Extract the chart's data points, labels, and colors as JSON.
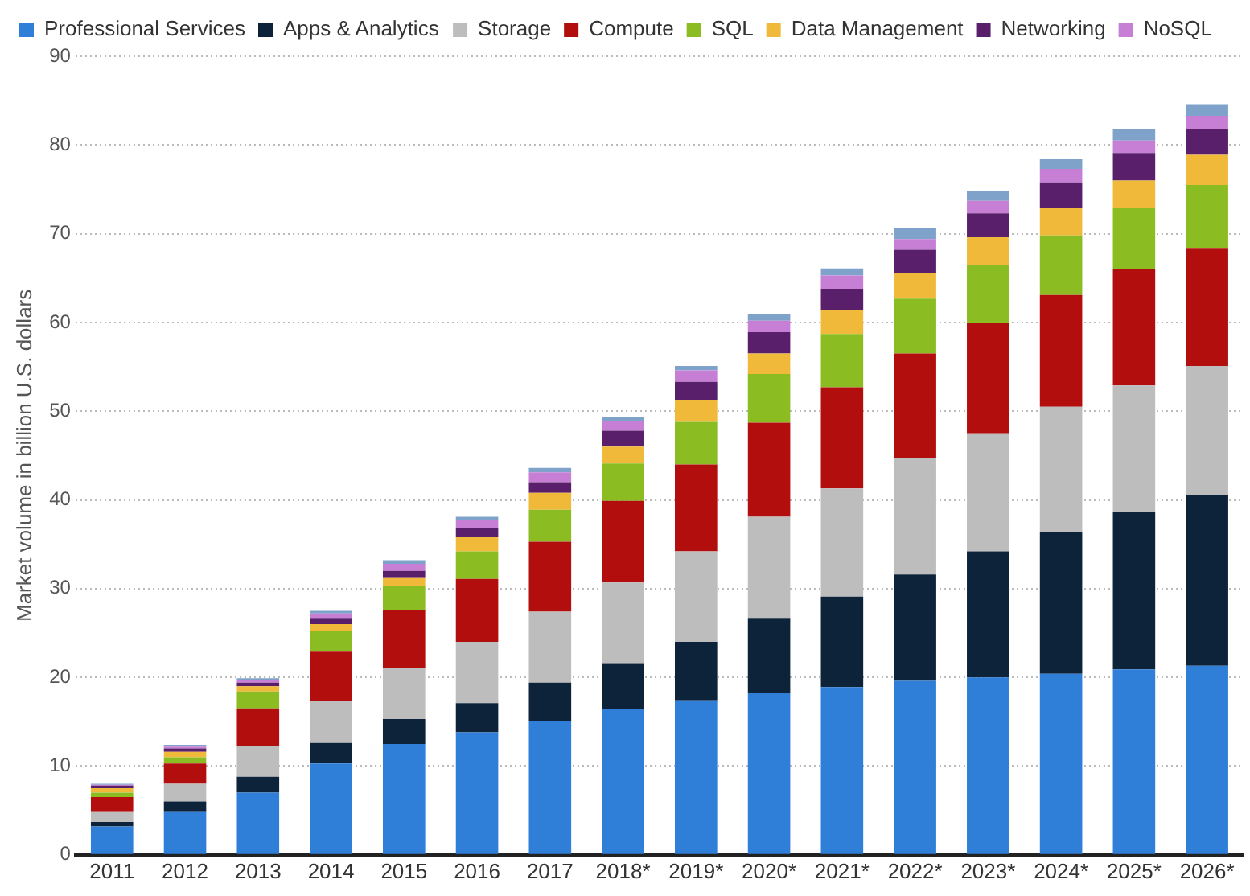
{
  "chart_data": {
    "type": "bar",
    "stacked": true,
    "ylabel": "Market volume in billion U.S. dollars",
    "categories": [
      "2011",
      "2012",
      "2013",
      "2014",
      "2015",
      "2016",
      "2017",
      "2018*",
      "2019*",
      "2020*",
      "2021*",
      "2022*",
      "2023*",
      "2024*",
      "2025*",
      "2026*"
    ],
    "series": [
      {
        "name": "Professional Services",
        "color": "#2f7ed8",
        "values": [
          3.2,
          4.9,
          7.0,
          10.3,
          12.5,
          13.8,
          15.1,
          16.4,
          17.4,
          18.2,
          18.9,
          19.6,
          20.0,
          20.4,
          20.9,
          21.3
        ]
      },
      {
        "name": "Apps & Analytics",
        "color": "#0d233a",
        "values": [
          0.5,
          1.1,
          1.8,
          2.3,
          2.8,
          3.3,
          4.3,
          5.2,
          6.6,
          8.5,
          10.2,
          12.0,
          14.2,
          16.0,
          17.7,
          19.3
        ]
      },
      {
        "name": "Storage",
        "color": "#bdbdbd",
        "values": [
          1.2,
          2.0,
          3.5,
          4.7,
          5.8,
          6.9,
          8.0,
          9.1,
          10.2,
          11.4,
          12.2,
          13.1,
          13.3,
          14.1,
          14.3,
          14.5
        ]
      },
      {
        "name": "Compute",
        "color": "#b20e0e",
        "values": [
          1.6,
          2.3,
          4.2,
          5.6,
          6.5,
          7.1,
          7.9,
          9.2,
          9.8,
          10.6,
          11.4,
          11.8,
          12.5,
          12.6,
          13.1,
          13.3
        ]
      },
      {
        "name": "SQL",
        "color": "#8bbc21",
        "values": [
          0.5,
          0.7,
          1.9,
          2.3,
          2.7,
          3.1,
          3.6,
          4.2,
          4.8,
          5.5,
          6.0,
          6.2,
          6.5,
          6.7,
          6.9,
          7.1
        ]
      },
      {
        "name": "Data Management",
        "color": "#f0b93a",
        "values": [
          0.5,
          0.6,
          0.6,
          0.8,
          0.9,
          1.6,
          1.9,
          1.9,
          2.5,
          2.3,
          2.7,
          2.9,
          3.1,
          3.1,
          3.1,
          3.4
        ]
      },
      {
        "name": "Networking",
        "color": "#5a1f6b",
        "values": [
          0.3,
          0.4,
          0.4,
          0.7,
          0.8,
          1.0,
          1.2,
          1.8,
          2.0,
          2.4,
          2.4,
          2.6,
          2.7,
          2.9,
          3.1,
          2.9
        ]
      },
      {
        "name": "NoSQL",
        "color": "#c77fd6",
        "values": [
          0.1,
          0.2,
          0.3,
          0.5,
          0.8,
          0.9,
          1.1,
          1.1,
          1.3,
          1.3,
          1.5,
          1.2,
          1.4,
          1.5,
          1.4,
          1.5
        ]
      },
      {
        "color": "#7ea2c9",
        "values": [
          0.1,
          0.2,
          0.2,
          0.3,
          0.4,
          0.4,
          0.5,
          0.4,
          0.5,
          0.7,
          0.8,
          1.2,
          1.1,
          1.1,
          1.3,
          1.3
        ]
      }
    ],
    "ylim": [
      0,
      90
    ],
    "yticks": [
      0,
      10,
      20,
      30,
      40,
      50,
      60,
      70,
      80,
      90
    ],
    "grid": "y",
    "legend": "top"
  }
}
